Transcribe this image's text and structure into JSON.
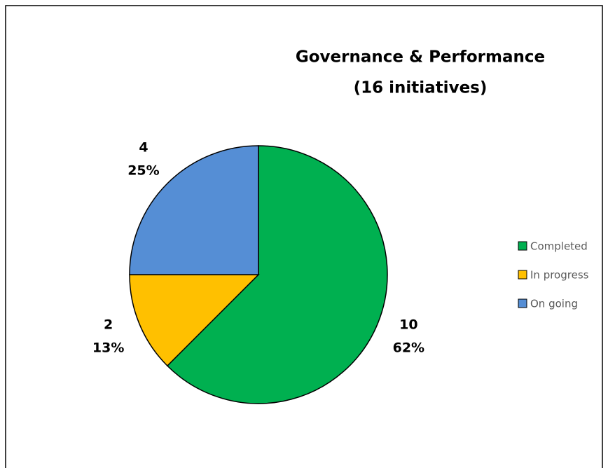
{
  "chart_data": {
    "type": "pie",
    "title": "Governance & Performance",
    "subtitle": "(16 initiatives)",
    "categories": [
      "Completed",
      "In progress",
      "On going"
    ],
    "values": [
      10,
      2,
      4
    ],
    "percent_labels": [
      "62%",
      "13%",
      "25%"
    ],
    "colors": [
      "#00b050",
      "#ffc000",
      "#558ed5"
    ],
    "legend": "right"
  }
}
